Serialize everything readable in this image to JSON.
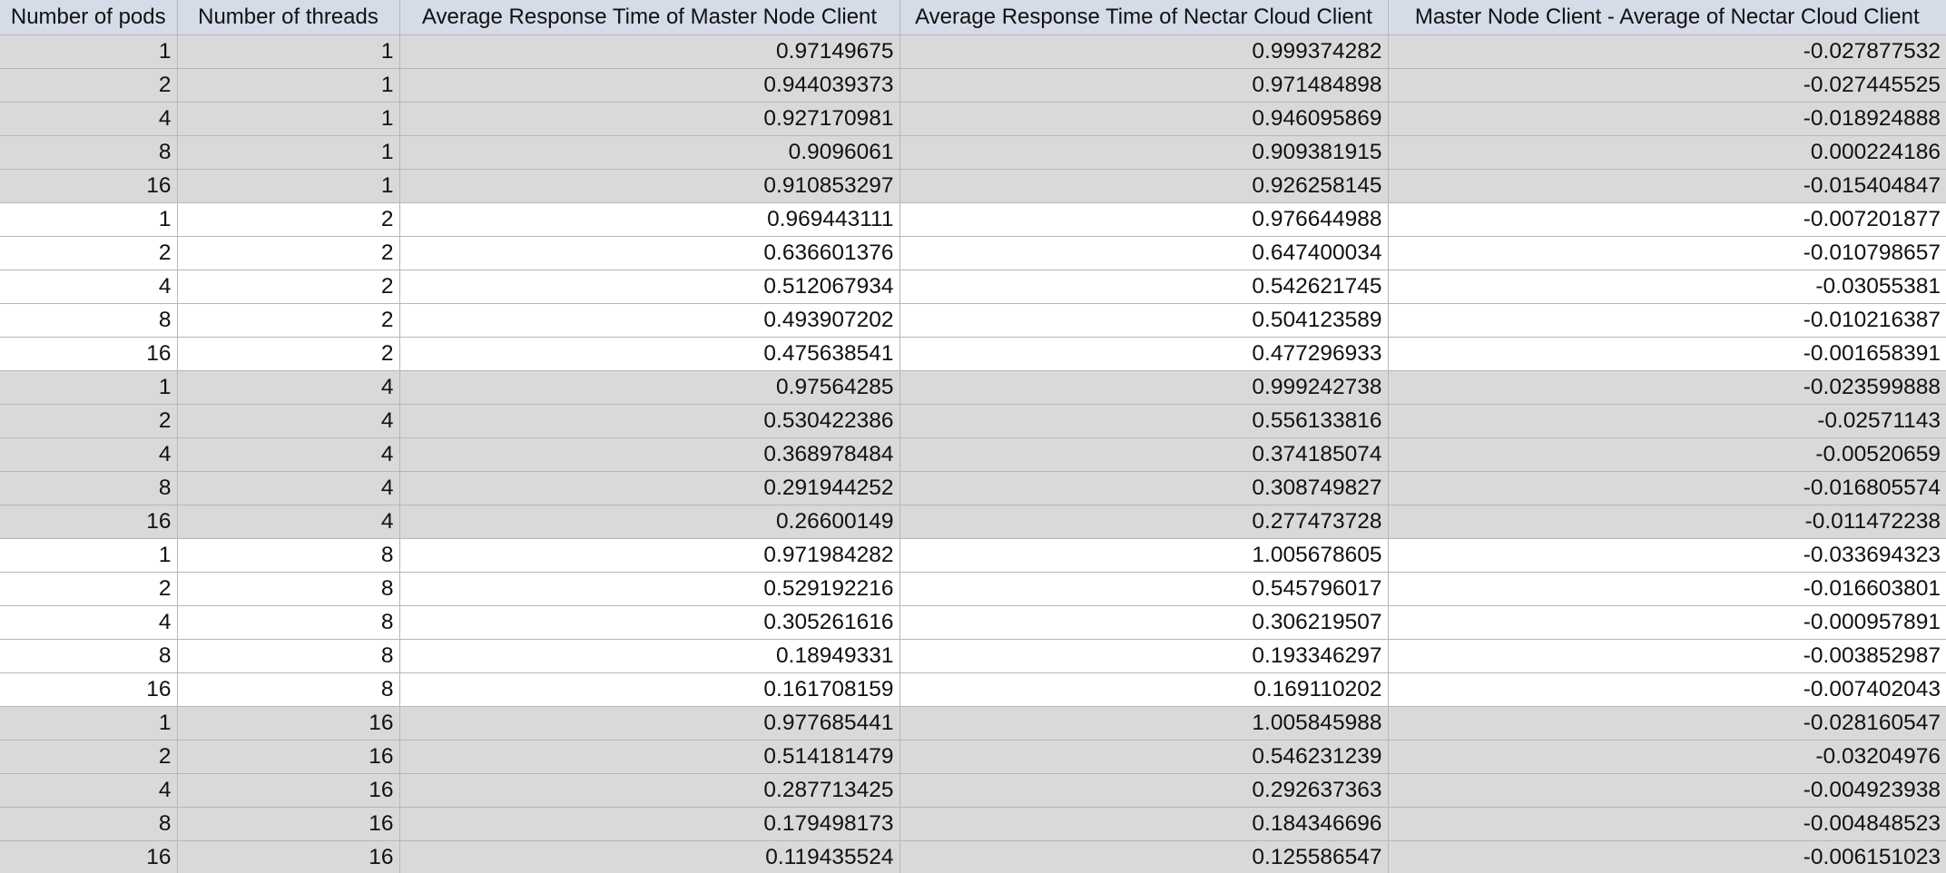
{
  "spreadsheet": {
    "headers": [
      "Number of pods",
      "Number of threads",
      "Average Response Time of Master Node Client",
      "Average Response Time of Nectar Cloud Client",
      "Master Node Client - Average of Nectar Cloud Client"
    ],
    "colors": {
      "header_bg": "#d5dbe7",
      "band_gray": "#d9d9d9",
      "band_white": "#ffffff",
      "grid": "#b7b7b7"
    },
    "rows": [
      {
        "band": "gray",
        "cells": [
          "1",
          "1",
          "0.97149675",
          "0.999374282",
          "-0.027877532"
        ]
      },
      {
        "band": "gray",
        "cells": [
          "2",
          "1",
          "0.944039373",
          "0.971484898",
          "-0.027445525"
        ]
      },
      {
        "band": "gray",
        "cells": [
          "4",
          "1",
          "0.927170981",
          "0.946095869",
          "-0.018924888"
        ]
      },
      {
        "band": "gray",
        "cells": [
          "8",
          "1",
          "0.9096061",
          "0.909381915",
          "0.000224186"
        ]
      },
      {
        "band": "gray",
        "cells": [
          "16",
          "1",
          "0.910853297",
          "0.926258145",
          "-0.015404847"
        ]
      },
      {
        "band": "white",
        "cells": [
          "1",
          "2",
          "0.969443111",
          "0.976644988",
          "-0.007201877"
        ]
      },
      {
        "band": "white",
        "cells": [
          "2",
          "2",
          "0.636601376",
          "0.647400034",
          "-0.010798657"
        ]
      },
      {
        "band": "white",
        "cells": [
          "4",
          "2",
          "0.512067934",
          "0.542621745",
          "-0.03055381"
        ]
      },
      {
        "band": "white",
        "cells": [
          "8",
          "2",
          "0.493907202",
          "0.504123589",
          "-0.010216387"
        ]
      },
      {
        "band": "white",
        "cells": [
          "16",
          "2",
          "0.475638541",
          "0.477296933",
          "-0.001658391"
        ]
      },
      {
        "band": "gray",
        "cells": [
          "1",
          "4",
          "0.97564285",
          "0.999242738",
          "-0.023599888"
        ]
      },
      {
        "band": "gray",
        "cells": [
          "2",
          "4",
          "0.530422386",
          "0.556133816",
          "-0.02571143"
        ]
      },
      {
        "band": "gray",
        "cells": [
          "4",
          "4",
          "0.368978484",
          "0.374185074",
          "-0.00520659"
        ]
      },
      {
        "band": "gray",
        "cells": [
          "8",
          "4",
          "0.291944252",
          "0.308749827",
          "-0.016805574"
        ]
      },
      {
        "band": "gray",
        "cells": [
          "16",
          "4",
          "0.26600149",
          "0.277473728",
          "-0.011472238"
        ]
      },
      {
        "band": "white",
        "cells": [
          "1",
          "8",
          "0.971984282",
          "1.005678605",
          "-0.033694323"
        ]
      },
      {
        "band": "white",
        "cells": [
          "2",
          "8",
          "0.529192216",
          "0.545796017",
          "-0.016603801"
        ]
      },
      {
        "band": "white",
        "cells": [
          "4",
          "8",
          "0.305261616",
          "0.306219507",
          "-0.000957891"
        ]
      },
      {
        "band": "white",
        "cells": [
          "8",
          "8",
          "0.18949331",
          "0.193346297",
          "-0.003852987"
        ]
      },
      {
        "band": "white",
        "cells": [
          "16",
          "8",
          "0.161708159",
          "0.169110202",
          "-0.007402043"
        ]
      },
      {
        "band": "gray",
        "cells": [
          "1",
          "16",
          "0.977685441",
          "1.005845988",
          "-0.028160547"
        ]
      },
      {
        "band": "gray",
        "cells": [
          "2",
          "16",
          "0.514181479",
          "0.546231239",
          "-0.03204976"
        ]
      },
      {
        "band": "gray",
        "cells": [
          "4",
          "16",
          "0.287713425",
          "0.292637363",
          "-0.004923938"
        ]
      },
      {
        "band": "gray",
        "cells": [
          "8",
          "16",
          "0.179498173",
          "0.184346696",
          "-0.004848523"
        ]
      },
      {
        "band": "gray",
        "cells": [
          "16",
          "16",
          "0.119435524",
          "0.125586547",
          "-0.006151023"
        ]
      }
    ]
  }
}
